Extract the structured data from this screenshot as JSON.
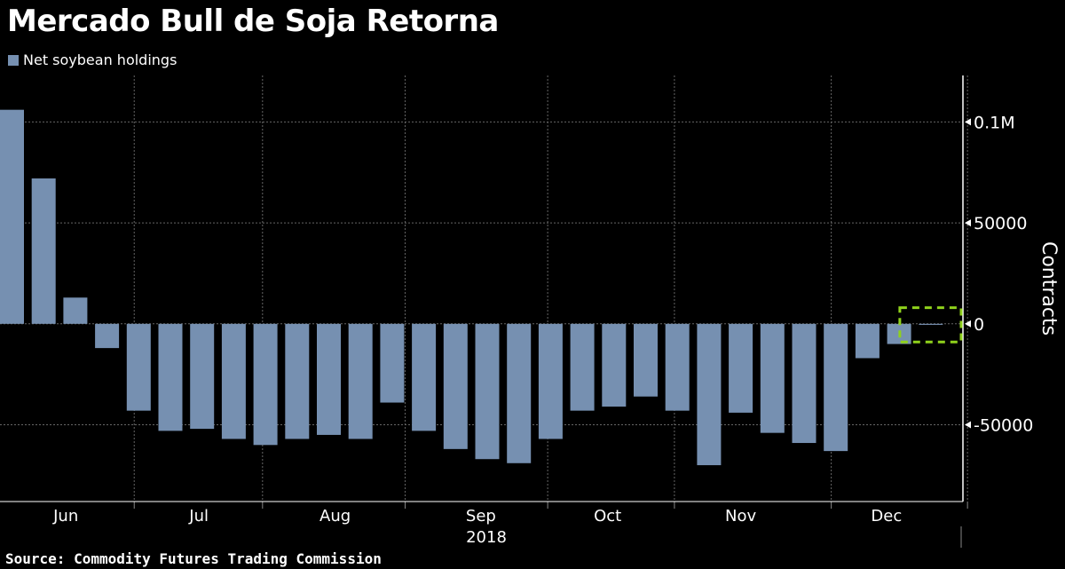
{
  "title": "Mercado Bull de Soja Retorna",
  "source": "Source: Commodity Futures Trading Commission",
  "colors": {
    "bar": "#7690b1",
    "highlight": "#8fd11c",
    "grid": "#555555"
  },
  "chart_data": {
    "type": "bar",
    "title": "Mercado Bull de Soja Retorna",
    "legend": [
      "Net soybean holdings"
    ],
    "legend_placement": "top-left",
    "ylabel": "Contracts",
    "xlabel": "2018",
    "ylim": [
      -88000,
      123000
    ],
    "yticks": [
      {
        "value": 100000,
        "label": "0.1M"
      },
      {
        "value": 50000,
        "label": "50000"
      },
      {
        "value": 0,
        "label": "0"
      },
      {
        "value": -50000,
        "label": "-50000"
      }
    ],
    "xticks": [
      {
        "label": "Jun",
        "index": 1.7
      },
      {
        "label": "Jul",
        "index": 5.9
      },
      {
        "label": "Aug",
        "index": 10.2
      },
      {
        "label": "Sep",
        "index": 14.8
      },
      {
        "label": "Oct",
        "index": 18.8
      },
      {
        "label": "Nov",
        "index": 23.0
      },
      {
        "label": "Dec",
        "index": 27.6
      }
    ],
    "month_boundaries": [
      3.9,
      7.95,
      12.45,
      16.95,
      20.95,
      25.9,
      30.2
    ],
    "year_label": "2018",
    "series": [
      {
        "name": "Net soybean holdings",
        "values": [
          106000,
          72000,
          13000,
          -12000,
          -43000,
          -53000,
          -52000,
          -57000,
          -60000,
          -57000,
          -55000,
          -57000,
          -39000,
          -53000,
          -62000,
          -67000,
          -69000,
          -57000,
          -43000,
          -41000,
          -36000,
          -43000,
          -70000,
          -44000,
          -54000,
          -59000,
          -63000,
          -17000,
          -10000,
          -500
        ]
      }
    ],
    "highlight": {
      "from_index": 28.4,
      "to_index": 30.4,
      "ymin": -9000,
      "ymax": 8000
    },
    "grid": true
  }
}
